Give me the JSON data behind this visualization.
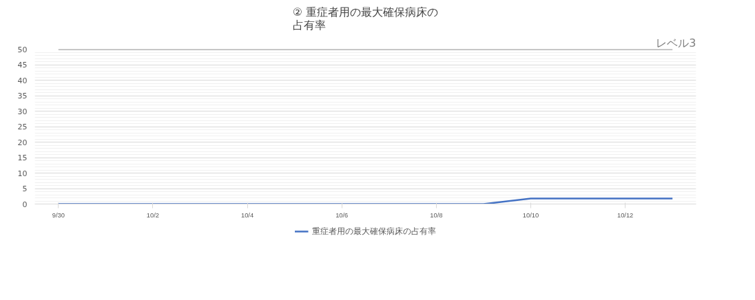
{
  "chart_data": {
    "type": "line",
    "title": "② 重症者用の最大確保病床の占有率",
    "categories": [
      "9/30",
      null,
      "10/2",
      null,
      "10/4",
      null,
      "10/6",
      null,
      "10/8",
      null,
      "10/10",
      null,
      "10/12",
      null
    ],
    "series": [
      {
        "name": "重症者用の最大確保病床の占有率",
        "color": "#4472c4",
        "values": [
          0,
          0,
          0,
          0,
          0,
          0,
          0,
          0,
          0,
          0,
          1.8,
          1.8,
          1.8,
          1.8
        ]
      }
    ],
    "ref_lines": [
      {
        "axis": "y",
        "value": 50,
        "label": "レベル3",
        "color": "#a5a5a5"
      }
    ],
    "ylim": [
      0,
      50
    ],
    "yticks": [
      0,
      5,
      10,
      15,
      20,
      25,
      30,
      35,
      40,
      45,
      50
    ],
    "grid": "y",
    "legend": "bottom",
    "marker": "none",
    "line_style": "solid"
  }
}
